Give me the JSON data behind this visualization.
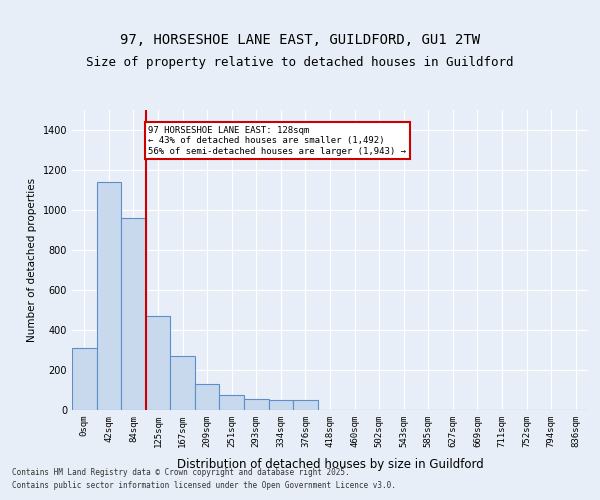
{
  "title_line1": "97, HORSESHOE LANE EAST, GUILDFORD, GU1 2TW",
  "title_line2": "Size of property relative to detached houses in Guildford",
  "xlabel": "Distribution of detached houses by size in Guildford",
  "ylabel": "Number of detached properties",
  "bar_labels": [
    "0sqm",
    "42sqm",
    "84sqm",
    "125sqm",
    "167sqm",
    "209sqm",
    "251sqm",
    "293sqm",
    "334sqm",
    "376sqm",
    "418sqm",
    "460sqm",
    "502sqm",
    "543sqm",
    "585sqm",
    "627sqm",
    "669sqm",
    "711sqm",
    "752sqm",
    "794sqm",
    "836sqm"
  ],
  "bar_values": [
    310,
    1140,
    960,
    470,
    270,
    130,
    75,
    55,
    50,
    50,
    0,
    0,
    0,
    0,
    0,
    0,
    0,
    0,
    0,
    0,
    0
  ],
  "bar_color": "#c9d9ed",
  "bar_edge_color": "#5b8fc9",
  "property_line_x": 3,
  "property_line_label": "97 HORSESHOE LANE EAST: 128sqm",
  "annotation_line1": "97 HORSESHOE LANE EAST: 128sqm",
  "annotation_line2": "← 43% of detached houses are smaller (1,492)",
  "annotation_line3": "56% of semi-detached houses are larger (1,943) →",
  "annotation_box_color": "#ffffff",
  "annotation_box_edge": "#cc0000",
  "vline_color": "#cc0000",
  "ylim": [
    0,
    1500
  ],
  "yticks": [
    0,
    200,
    400,
    600,
    800,
    1000,
    1200,
    1400
  ],
  "footer_line1": "Contains HM Land Registry data © Crown copyright and database right 2025.",
  "footer_line2": "Contains public sector information licensed under the Open Government Licence v3.0.",
  "background_color": "#e8eef7",
  "plot_bg_color": "#e8eef7"
}
